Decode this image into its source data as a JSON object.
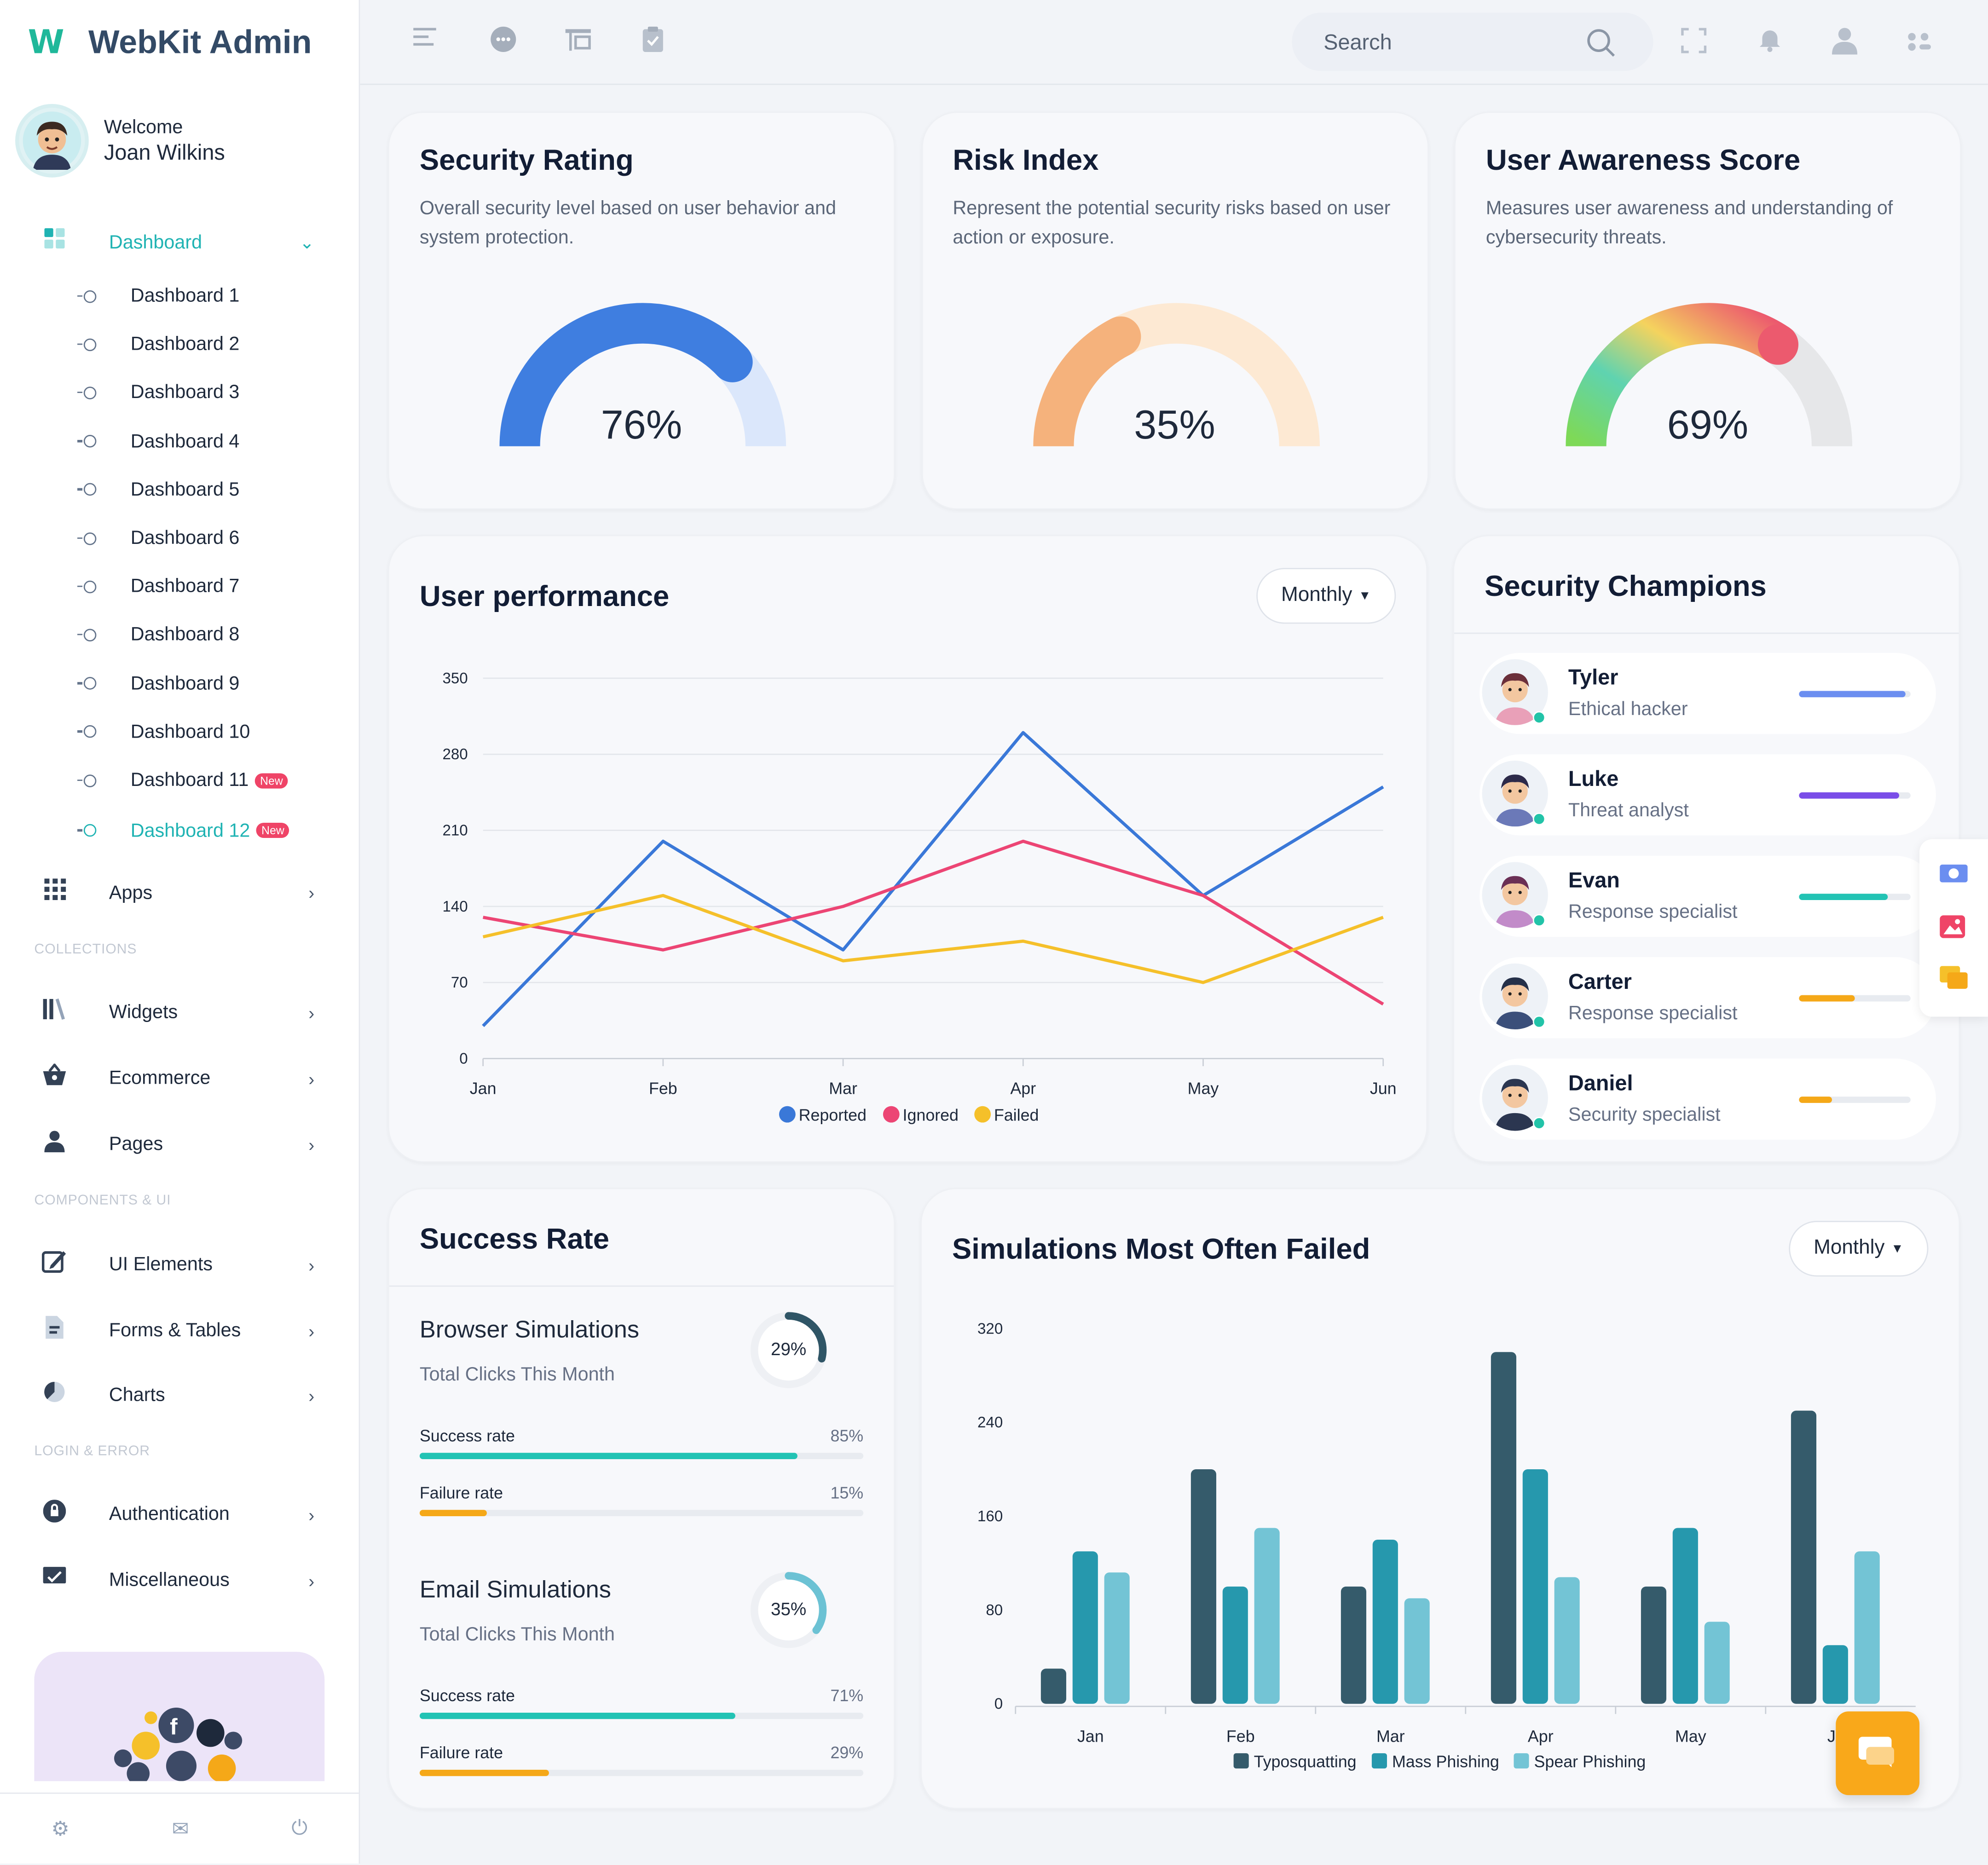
{
  "app": {
    "logo_mark": "W",
    "title": "WebKit Admin"
  },
  "profile": {
    "welcome": "Welcome",
    "name": "Joan Wilkins"
  },
  "sidebar": {
    "dashboard_label": "Dashboard",
    "dashboards": [
      {
        "label": "Dashboard 1",
        "badge": ""
      },
      {
        "label": "Dashboard 2",
        "badge": ""
      },
      {
        "label": "Dashboard 3",
        "badge": ""
      },
      {
        "label": "Dashboard 4",
        "badge": ""
      },
      {
        "label": "Dashboard 5",
        "badge": ""
      },
      {
        "label": "Dashboard 6",
        "badge": ""
      },
      {
        "label": "Dashboard 7",
        "badge": ""
      },
      {
        "label": "Dashboard 8",
        "badge": ""
      },
      {
        "label": "Dashboard 9",
        "badge": ""
      },
      {
        "label": "Dashboard 10",
        "badge": ""
      },
      {
        "label": "Dashboard 11",
        "badge": "New"
      },
      {
        "label": "Dashboard 12",
        "badge": "New"
      }
    ],
    "apps_label": "Apps",
    "sections": [
      "COLLECTIONS",
      "COMPONENTS & UI",
      "LOGIN & ERROR"
    ],
    "items": [
      "Widgets",
      "Ecommerce",
      "Pages",
      "UI Elements",
      "Forms & Tables",
      "Charts",
      "Authentication",
      "Miscellaneous"
    ]
  },
  "topbar": {
    "search_placeholder": "Search"
  },
  "gauges": [
    {
      "title": "Security Rating",
      "desc": "Overall security level based on user behavior and system protection.",
      "value": 76,
      "label": "76%",
      "color": "#3f7ee0",
      "track": "#dbe7fb"
    },
    {
      "title": "Risk Index",
      "desc": "Represent the potential security risks based on user action or exposure.",
      "value": 35,
      "label": "35%",
      "color": "#f5b27c",
      "track": "#fde9d3"
    },
    {
      "title": "User Awareness Score",
      "desc": "Measures user awareness and understanding of cybersecurity threats.",
      "value": 69,
      "label": "69%",
      "color": "gradient",
      "track": "#e6e7e9"
    }
  ],
  "user_performance": {
    "title": "User performance",
    "filter": "Monthly"
  },
  "champions": {
    "title": "Security Champions",
    "people": [
      {
        "name": "Tyler",
        "role": "Ethical hacker",
        "progress": 0.95,
        "color": "#6b8ef0"
      },
      {
        "name": "Luke",
        "role": "Threat analyst",
        "progress": 0.9,
        "color": "#7a4de8"
      },
      {
        "name": "Evan",
        "role": "Response specialist",
        "progress": 0.8,
        "color": "#22c3b4"
      },
      {
        "name": "Carter",
        "role": "Response specialist",
        "progress": 0.5,
        "color": "#f5a818"
      },
      {
        "name": "Daniel",
        "role": "Security specialist",
        "progress": 0.3,
        "color": "#f5a818"
      }
    ]
  },
  "success_rate": {
    "title": "Success Rate",
    "sims": [
      {
        "title": "Browser Simulations",
        "sub": "Total Clicks This Month",
        "ring": 29,
        "ring_label": "29%",
        "ring_color": "#2f5566",
        "success_label": "Success rate",
        "success_val": "85%",
        "success": 85,
        "failure_label": "Failure rate",
        "failure_val": "15%",
        "failure": 15
      },
      {
        "title": "Email Simulations",
        "sub": "Total Clicks This Month",
        "ring": 35,
        "ring_label": "35%",
        "ring_color": "#6cc2d4",
        "success_label": "Success rate",
        "success_val": "71%",
        "success": 71,
        "failure_label": "Failure rate",
        "failure_val": "29%",
        "failure": 29
      }
    ],
    "success_color": "#22c3b4",
    "failure_color": "#f5a818"
  },
  "simulations": {
    "title": "Simulations Most Often Failed",
    "filter": "Monthly"
  },
  "chart_data": [
    {
      "type": "line",
      "categories": [
        "Jan",
        "Feb",
        "Mar",
        "Apr",
        "May",
        "Jun"
      ],
      "ylim": [
        0,
        350
      ],
      "yticks": [
        0,
        70,
        140,
        210,
        280,
        350
      ],
      "series": [
        {
          "name": "Reported",
          "color": "#3a78d8",
          "values": [
            30,
            200,
            100,
            300,
            150,
            250
          ]
        },
        {
          "name": "Ignored",
          "color": "#ec4574",
          "values": [
            130,
            100,
            140,
            200,
            150,
            50
          ]
        },
        {
          "name": "Failed",
          "color": "#f5c02a",
          "values": [
            112,
            150,
            90,
            108,
            70,
            130
          ]
        }
      ],
      "legend": "bottom"
    },
    {
      "type": "bar",
      "categories": [
        "Jan",
        "Feb",
        "Mar",
        "Apr",
        "May",
        "Jun"
      ],
      "ylim": [
        0,
        320
      ],
      "yticks": [
        0,
        80,
        160,
        240,
        320
      ],
      "series": [
        {
          "name": "Typosquatting",
          "color": "#355b6b",
          "values": [
            30,
            200,
            100,
            300,
            100,
            250
          ]
        },
        {
          "name": "Mass Phishing",
          "color": "#2698ad",
          "values": [
            130,
            100,
            140,
            200,
            150,
            50
          ]
        },
        {
          "name": "Spear Phishing",
          "color": "#73c4d5",
          "values": [
            112,
            150,
            90,
            108,
            70,
            130
          ]
        }
      ],
      "legend": "bottom"
    }
  ]
}
